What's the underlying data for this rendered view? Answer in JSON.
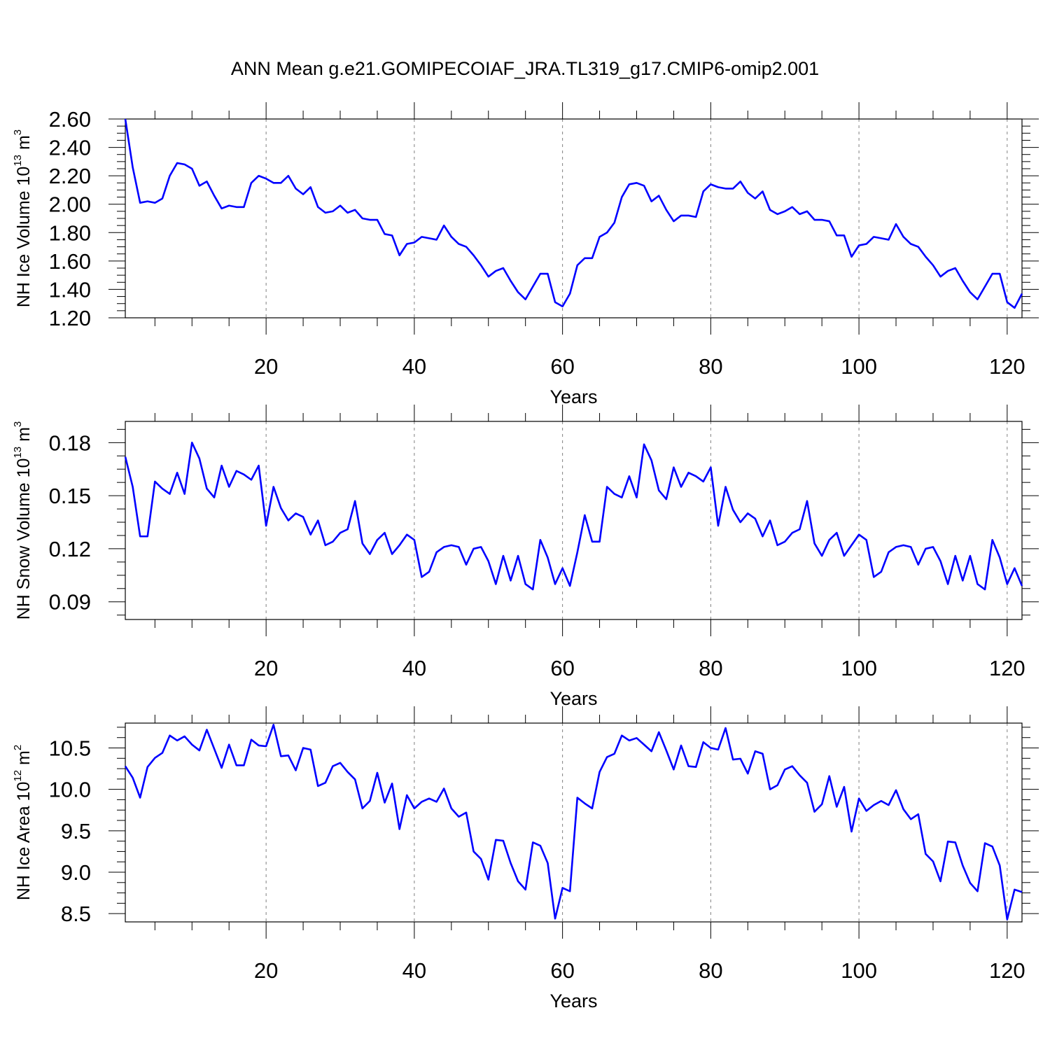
{
  "title": "ANN Mean g.e21.GOMIPECOIAF_JRA.TL319_g17.CMIP6-omip2.001",
  "colors": {
    "line": "#0000ff",
    "axis": "#000000",
    "grid": "#808080"
  },
  "chart_data": [
    {
      "type": "line",
      "ylabel": "NH Ice Volume",
      "ylabel_unit_base": "10",
      "ylabel_unit_exp": "13",
      "ylabel_unit_mid": " m",
      "ylabel_unit_exp2": "3",
      "xlabel": "Years",
      "xlim": [
        1,
        122
      ],
      "ylim": [
        1.2,
        2.6
      ],
      "xticks": [
        20,
        40,
        60,
        80,
        100,
        120
      ],
      "xtick_labels": [
        "20",
        "40",
        "60",
        "80",
        "100",
        "120"
      ],
      "yticks": [
        1.2,
        1.4,
        1.6,
        1.8,
        2.0,
        2.2,
        2.4,
        2.6
      ],
      "ytick_labels": [
        "1.20",
        "1.40",
        "1.60",
        "1.80",
        "2.00",
        "2.20",
        "2.40",
        "2.60"
      ],
      "x_start": 1,
      "values": [
        2.6,
        2.26,
        2.01,
        2.02,
        2.01,
        2.04,
        2.2,
        2.29,
        2.28,
        2.25,
        2.13,
        2.16,
        2.06,
        1.97,
        1.99,
        1.98,
        1.98,
        2.15,
        2.2,
        2.18,
        2.15,
        2.15,
        2.2,
        2.11,
        2.07,
        2.12,
        1.98,
        1.94,
        1.95,
        1.99,
        1.94,
        1.96,
        1.9,
        1.89,
        1.89,
        1.79,
        1.78,
        1.64,
        1.72,
        1.73,
        1.77,
        1.76,
        1.75,
        1.85,
        1.77,
        1.72,
        1.7,
        1.64,
        1.57,
        1.49,
        1.53,
        1.55,
        1.46,
        1.38,
        1.33,
        1.42,
        1.51,
        1.51,
        1.31,
        1.28,
        1.37,
        1.57,
        1.62,
        1.62,
        1.77,
        1.8,
        1.87,
        2.05,
        2.14,
        2.15,
        2.13,
        2.02,
        2.06,
        1.96,
        1.88,
        1.92,
        1.92,
        1.91,
        2.09,
        2.14,
        2.12,
        2.11,
        2.11,
        2.16,
        2.08,
        2.04,
        2.09,
        1.96,
        1.93,
        1.95,
        1.98,
        1.93,
        1.95,
        1.89,
        1.89,
        1.88,
        1.78,
        1.78,
        1.63,
        1.71,
        1.72,
        1.77,
        1.76,
        1.75,
        1.86,
        1.77,
        1.72,
        1.7,
        1.63,
        1.57,
        1.49,
        1.53,
        1.55,
        1.46,
        1.38,
        1.33,
        1.42,
        1.51,
        1.51,
        1.31,
        1.27,
        1.37
      ]
    },
    {
      "type": "line",
      "ylabel": "NH Snow Volume",
      "ylabel_unit_base": "10",
      "ylabel_unit_exp": "13",
      "ylabel_unit_mid": " m",
      "ylabel_unit_exp2": "3",
      "xlabel": "Years",
      "xlim": [
        1,
        122
      ],
      "ylim": [
        0.08,
        0.192
      ],
      "xticks": [
        20,
        40,
        60,
        80,
        100,
        120
      ],
      "xtick_labels": [
        "20",
        "40",
        "60",
        "80",
        "100",
        "120"
      ],
      "yticks": [
        0.09,
        0.12,
        0.15,
        0.18
      ],
      "ytick_labels": [
        "0.09",
        "0.12",
        "0.15",
        "0.18"
      ],
      "x_start": 1,
      "values": [
        0.172,
        0.155,
        0.127,
        0.127,
        0.158,
        0.154,
        0.151,
        0.163,
        0.151,
        0.18,
        0.171,
        0.154,
        0.149,
        0.167,
        0.155,
        0.164,
        0.162,
        0.159,
        0.167,
        0.133,
        0.155,
        0.143,
        0.136,
        0.14,
        0.138,
        0.128,
        0.136,
        0.122,
        0.124,
        0.129,
        0.131,
        0.147,
        0.123,
        0.117,
        0.125,
        0.129,
        0.117,
        0.122,
        0.128,
        0.125,
        0.104,
        0.107,
        0.118,
        0.121,
        0.122,
        0.121,
        0.111,
        0.12,
        0.121,
        0.113,
        0.1,
        0.116,
        0.102,
        0.116,
        0.1,
        0.097,
        0.125,
        0.115,
        0.1,
        0.109,
        0.099,
        0.118,
        0.139,
        0.124,
        0.124,
        0.155,
        0.151,
        0.149,
        0.161,
        0.149,
        0.179,
        0.17,
        0.153,
        0.148,
        0.166,
        0.155,
        0.163,
        0.161,
        0.158,
        0.166,
        0.133,
        0.155,
        0.142,
        0.135,
        0.14,
        0.137,
        0.127,
        0.136,
        0.122,
        0.124,
        0.129,
        0.131,
        0.147,
        0.123,
        0.116,
        0.125,
        0.129,
        0.116,
        0.122,
        0.128,
        0.125,
        0.104,
        0.107,
        0.118,
        0.121,
        0.122,
        0.121,
        0.111,
        0.12,
        0.121,
        0.113,
        0.1,
        0.116,
        0.102,
        0.116,
        0.1,
        0.097,
        0.125,
        0.115,
        0.1,
        0.109,
        0.099
      ]
    },
    {
      "type": "line",
      "ylabel": "NH Ice Area",
      "ylabel_unit_base": "10",
      "ylabel_unit_exp": "12",
      "ylabel_unit_mid": " m",
      "ylabel_unit_exp2": "2",
      "xlabel": "Years",
      "xlim": [
        1,
        122
      ],
      "ylim": [
        8.4,
        10.8
      ],
      "xticks": [
        20,
        40,
        60,
        80,
        100,
        120
      ],
      "xtick_labels": [
        "20",
        "40",
        "60",
        "80",
        "100",
        "120"
      ],
      "yticks": [
        8.5,
        9.0,
        9.5,
        10.0,
        10.5
      ],
      "ytick_labels": [
        "8.5",
        "9.0",
        "9.5",
        "10.0",
        "10.5"
      ],
      "x_start": 1,
      "values": [
        10.28,
        10.14,
        9.9,
        10.27,
        10.38,
        10.44,
        10.65,
        10.59,
        10.64,
        10.54,
        10.47,
        10.72,
        10.49,
        10.26,
        10.54,
        10.29,
        10.29,
        10.6,
        10.53,
        10.52,
        10.78,
        10.4,
        10.41,
        10.23,
        10.5,
        10.48,
        10.04,
        10.08,
        10.28,
        10.32,
        10.21,
        10.12,
        9.77,
        9.86,
        10.2,
        9.84,
        10.07,
        9.52,
        9.93,
        9.77,
        9.85,
        9.89,
        9.85,
        10.01,
        9.77,
        9.67,
        9.72,
        9.25,
        9.16,
        8.91,
        9.39,
        9.38,
        9.11,
        8.89,
        8.79,
        9.36,
        9.32,
        9.11,
        8.44,
        8.81,
        8.77,
        9.9,
        9.83,
        9.77,
        10.21,
        10.39,
        10.43,
        10.65,
        10.59,
        10.62,
        10.54,
        10.46,
        10.69,
        10.47,
        10.24,
        10.53,
        10.28,
        10.27,
        10.57,
        10.5,
        10.48,
        10.74,
        10.36,
        10.37,
        10.19,
        10.46,
        10.43,
        10.0,
        10.05,
        10.24,
        10.28,
        10.17,
        10.08,
        9.73,
        9.82,
        10.16,
        9.79,
        10.03,
        9.49,
        9.89,
        9.74,
        9.81,
        9.86,
        9.81,
        9.99,
        9.76,
        9.64,
        9.7,
        9.22,
        9.13,
        8.89,
        9.37,
        9.36,
        9.08,
        8.87,
        8.77,
        9.35,
        9.31,
        9.08,
        8.43,
        8.79,
        8.76
      ]
    }
  ]
}
